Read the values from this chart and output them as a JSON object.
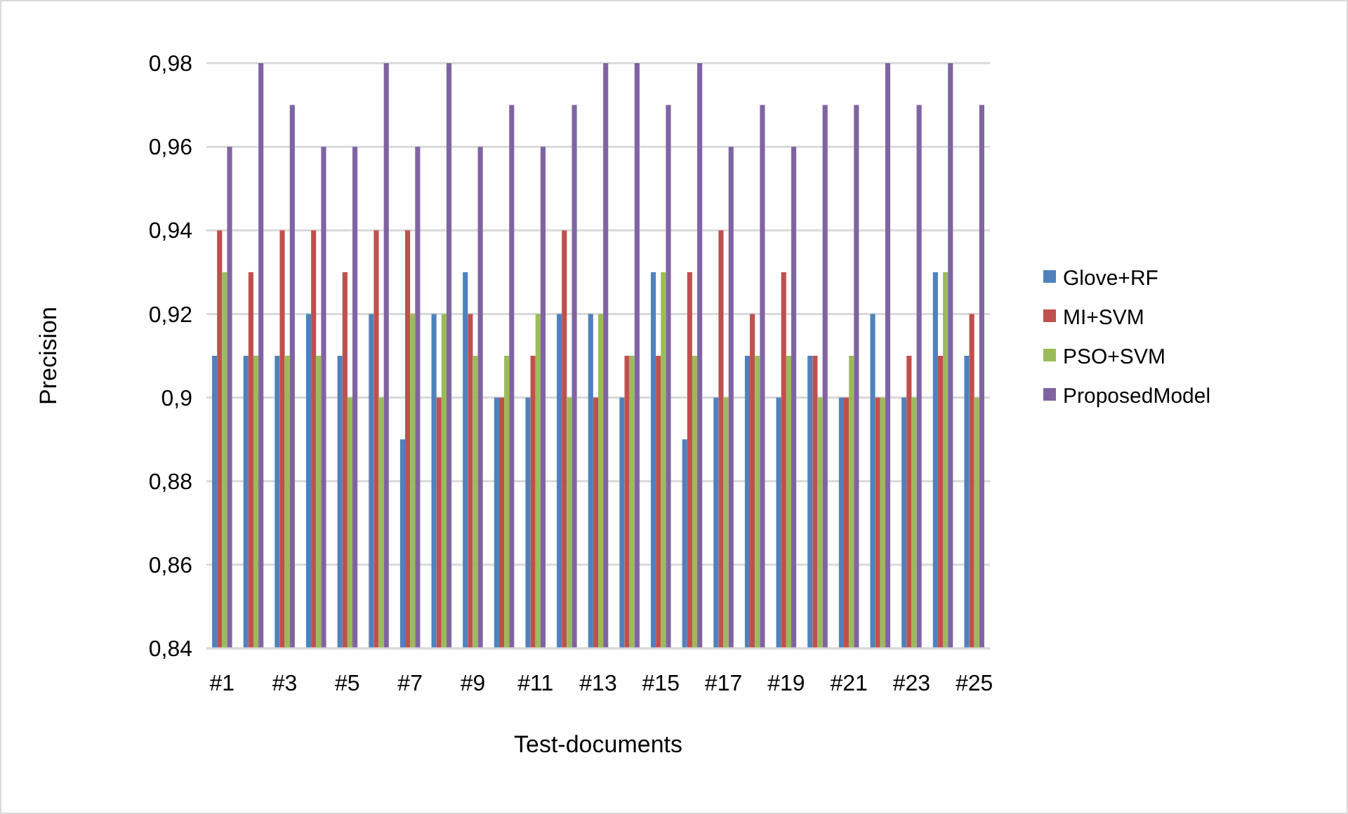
{
  "chart_data": {
    "type": "bar",
    "xlabel": "Test-documents",
    "ylabel": "Precision",
    "categories": [
      "#1",
      null,
      "#3",
      null,
      "#5",
      null,
      "#7",
      null,
      "#9",
      null,
      "#11",
      null,
      "#13",
      null,
      "#15",
      null,
      "#17",
      null,
      "#19",
      null,
      "#21",
      null,
      "#23",
      null,
      "#25"
    ],
    "series": [
      {
        "name": "Glove+RF",
        "color": "#4f81bd",
        "values": [
          0.91,
          0.91,
          0.91,
          0.92,
          0.91,
          0.92,
          0.89,
          0.92,
          0.93,
          0.9,
          0.9,
          0.92,
          0.92,
          0.9,
          0.93,
          0.89,
          0.9,
          0.91,
          0.9,
          0.91,
          0.9,
          0.92,
          0.9,
          0.93,
          0.91
        ]
      },
      {
        "name": "MI+SVM",
        "color": "#c0504d",
        "values": [
          0.94,
          0.93,
          0.94,
          0.94,
          0.93,
          0.94,
          0.94,
          0.9,
          0.92,
          0.9,
          0.91,
          0.94,
          0.9,
          0.91,
          0.91,
          0.93,
          0.94,
          0.92,
          0.93,
          0.91,
          0.9,
          0.9,
          0.91,
          0.91,
          0.92
        ]
      },
      {
        "name": "PSO+SVM",
        "color": "#9bbb59",
        "values": [
          0.93,
          0.91,
          0.91,
          0.91,
          0.9,
          0.9,
          0.92,
          0.92,
          0.91,
          0.91,
          0.92,
          0.9,
          0.92,
          0.91,
          0.93,
          0.91,
          0.9,
          0.91,
          0.91,
          0.9,
          0.91,
          0.9,
          0.9,
          0.93,
          0.9
        ]
      },
      {
        "name": "ProposedModel",
        "color": "#8064a2",
        "values": [
          0.96,
          0.98,
          0.97,
          0.96,
          0.96,
          0.98,
          0.96,
          0.98,
          0.96,
          0.97,
          0.96,
          0.97,
          0.98,
          0.98,
          0.97,
          0.98,
          0.96,
          0.97,
          0.96,
          0.97,
          0.97,
          0.98,
          0.97,
          0.98,
          0.97
        ]
      }
    ],
    "ylim": [
      0.84,
      0.98
    ],
    "yticks": [
      {
        "value": 0.84,
        "label": "0,84"
      },
      {
        "value": 0.86,
        "label": "0,86"
      },
      {
        "value": 0.88,
        "label": "0,88"
      },
      {
        "value": 0.9,
        "label": "0,9"
      },
      {
        "value": 0.92,
        "label": "0,92"
      },
      {
        "value": 0.94,
        "label": "0,94"
      },
      {
        "value": 0.96,
        "label": "0,96"
      },
      {
        "value": 0.98,
        "label": "0,98"
      }
    ],
    "grid": "y",
    "legend": "right"
  }
}
